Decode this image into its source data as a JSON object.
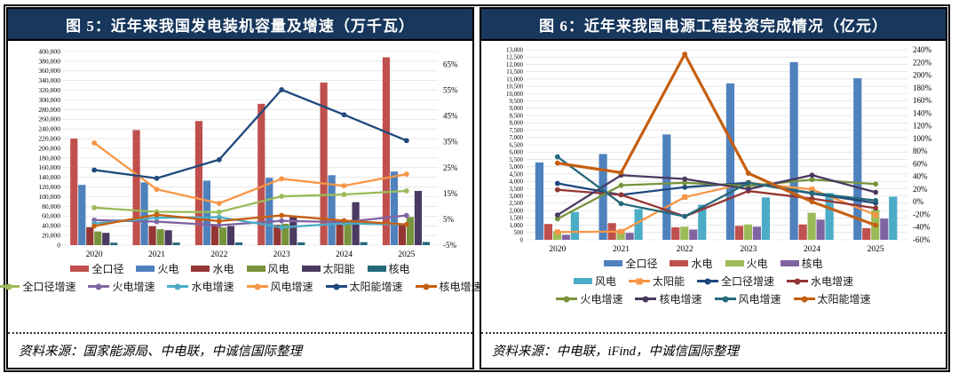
{
  "chart_data": [
    {
      "type": "combo-bar-line",
      "title": "图 5：近年来我国发电装机容量及增速（万千瓦）",
      "source": "资料来源：国家能源局、中电联，中诚信国际整理",
      "categories": [
        "2020",
        "2021",
        "2022",
        "2023",
        "2024",
        "2025"
      ],
      "y_left": {
        "min": 0,
        "max": 400000,
        "step": 20000,
        "format": "thousands"
      },
      "y_right": {
        "min": -5,
        "max": 70,
        "step": 10,
        "label_max": 65,
        "format": "percent"
      },
      "grid": true,
      "legend_rows": [
        6,
        6
      ],
      "bar_series": [
        {
          "name": "全口径",
          "color": "#C0504D",
          "values": [
            220000,
            237700,
            256400,
            292000,
            335900,
            388000
          ]
        },
        {
          "name": "火电",
          "color": "#4F81BD",
          "values": [
            124500,
            129700,
            133200,
            139000,
            144400,
            152000
          ]
        },
        {
          "name": "水电",
          "color": "#943634",
          "values": [
            37000,
            39100,
            41400,
            42200,
            43600,
            44500
          ]
        },
        {
          "name": "风电",
          "color": "#77933C",
          "values": [
            28200,
            32800,
            36500,
            44100,
            52100,
            58000
          ]
        },
        {
          "name": "太阳能",
          "color": "#4A3960",
          "values": [
            25300,
            30700,
            39300,
            60900,
            88700,
            112000
          ]
        },
        {
          "name": "核电",
          "color": "#25697B",
          "values": [
            5000,
            5300,
            5600,
            5700,
            6100,
            6500
          ]
        }
      ],
      "line_series": [
        {
          "name": "全口径增速",
          "color": "#9BBB59",
          "values": [
            9.5,
            7.9,
            7.8,
            13.9,
            14.6,
            16.0
          ]
        },
        {
          "name": "火电增速",
          "color": "#8064A2",
          "values": [
            4.7,
            4.1,
            2.7,
            4.4,
            3.9,
            6.5
          ]
        },
        {
          "name": "水电增速",
          "color": "#4BACC6",
          "values": [
            3.4,
            5.6,
            5.8,
            1.9,
            3.4,
            3.0
          ]
        },
        {
          "name": "风电增速",
          "color": "#F79646",
          "values": [
            34.6,
            16.6,
            11.2,
            20.7,
            18.0,
            22.5
          ]
        },
        {
          "name": "太阳能增速",
          "color": "#1F497D",
          "values": [
            24.1,
            20.9,
            28.1,
            55.2,
            45.5,
            35.5
          ]
        },
        {
          "name": "核电增速",
          "color": "#C55F11",
          "values": [
            2.4,
            6.8,
            4.3,
            6.5,
            4.5,
            3.0
          ]
        }
      ]
    },
    {
      "type": "combo-bar-line",
      "title": "图 6：近年来我国电源工程投资完成情况（亿元）",
      "source": "资料来源：中电联，iFind，中诚信国际整理",
      "categories": [
        "2020",
        "2021",
        "2022",
        "2023",
        "2024",
        "2025"
      ],
      "y_left": {
        "min": 0,
        "max": 13000,
        "step": 500,
        "format": "thousands"
      },
      "y_right": {
        "min": -60,
        "max": 240,
        "step": 20,
        "label_max": 240,
        "format": "percent"
      },
      "grid": true,
      "legend_rows": [
        4,
        4,
        4
      ],
      "bar_series": [
        {
          "name": "全口径",
          "color": "#4F81BD",
          "values": [
            5292,
            5870,
            7208,
            10700,
            12150,
            11050
          ]
        },
        {
          "name": "水电",
          "color": "#C0504D",
          "values": [
            1080,
            1140,
            850,
            950,
            1050,
            800
          ]
        },
        {
          "name": "火电",
          "color": "#9BBB59",
          "values": [
            600,
            690,
            900,
            1050,
            1850,
            2050
          ]
        },
        {
          "name": "核电",
          "color": "#8064A2",
          "values": [
            345,
            470,
            700,
            900,
            1380,
            1450
          ]
        },
        {
          "name": "风电",
          "color": "#4BACC6",
          "values": [
            1900,
            2100,
            2400,
            2900,
            3200,
            2950
          ]
        }
      ],
      "line_series": [
        {
          "name": "太阳能",
          "color": "#F79646",
          "axis": "left",
          "marker": "square",
          "values": [
            530,
            560,
            2920,
            3900,
            3450,
            1700
          ]
        },
        {
          "name": "全口径增速",
          "color": "#1F497D",
          "values": [
            29,
            11,
            23,
            30,
            13,
            -2
          ]
        },
        {
          "name": "水电增速",
          "color": "#943634",
          "values": [
            19,
            11,
            -23,
            17,
            5,
            -10
          ]
        },
        {
          "name": "火电增速",
          "color": "#77933C",
          "values": [
            -27,
            26,
            30,
            25,
            35,
            28
          ]
        },
        {
          "name": "核电增速",
          "color": "#4A3960",
          "values": [
            -21,
            42,
            36,
            20,
            42,
            15
          ]
        },
        {
          "name": "风电增速",
          "color": "#25697B",
          "values": [
            71,
            -3,
            -23,
            30,
            14,
            2
          ]
        },
        {
          "name": "太阳能增速",
          "color": "#C55F11",
          "width": 3.2,
          "values": [
            61,
            46,
            233,
            45,
            0,
            -37
          ]
        }
      ]
    }
  ]
}
